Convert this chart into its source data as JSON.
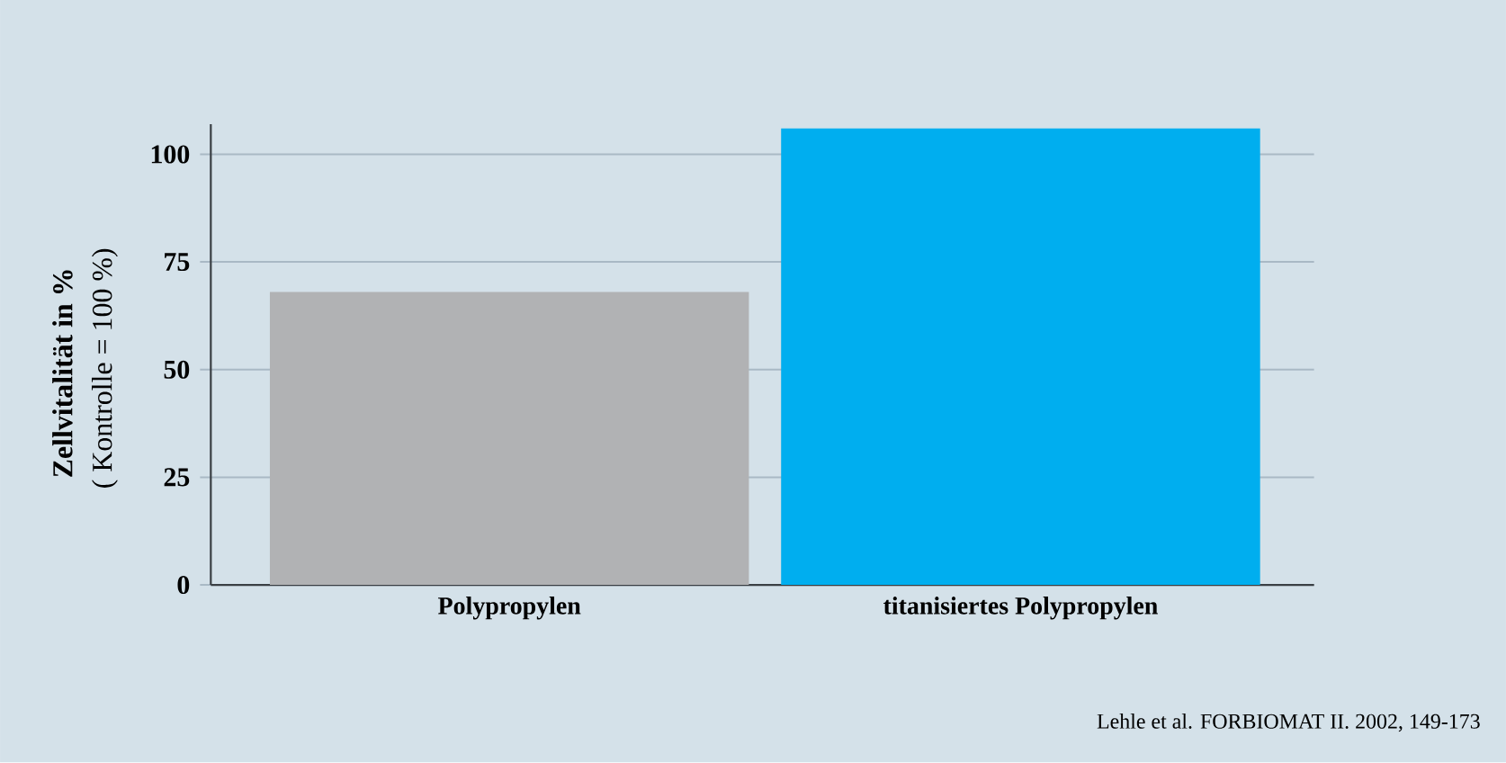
{
  "chart_data": {
    "type": "bar",
    "ylabel": "**Zellvitalität in %** ( Kontrolle = 100 %)",
    "categories": [
      "Polypropylen",
      "titanisiertes Polypropylen"
    ],
    "values": [
      68,
      106
    ],
    "colors": [
      "#b1b2b4",
      "#00aeef"
    ],
    "ylim": [
      0,
      107
    ],
    "yticks": [
      0,
      25,
      50,
      75,
      100
    ],
    "grid": "y",
    "annotations": [
      "Lehle et al. FORBIOMAT II. 2002, 149-173"
    ]
  }
}
